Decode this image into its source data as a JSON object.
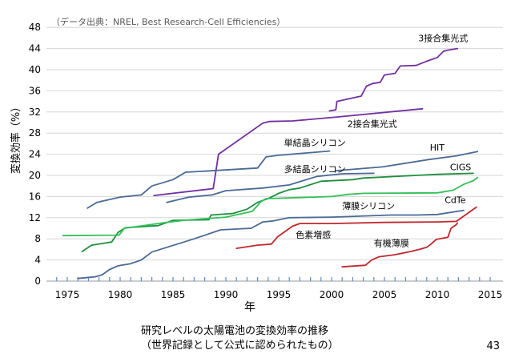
{
  "chart_data": {
    "type": "line",
    "source_note": "（データ出典：NREL, Best Research-Cell Efficiencies）",
    "xlabel": "年",
    "ylabel": "変換効率（%）",
    "xlim": [
      1973,
      2017
    ],
    "ylim": [
      0,
      50
    ],
    "xticks": [
      1975,
      1980,
      1985,
      1990,
      1995,
      2000,
      2005,
      2010,
      2015
    ],
    "yticks": [
      0,
      4,
      8,
      12,
      16,
      20,
      24,
      28,
      32,
      36,
      40,
      44,
      48
    ],
    "grid": true,
    "series": [
      {
        "name": "3接合集光式",
        "color": "#7030a0",
        "label_at": [
          2008.2,
          45.4
        ],
        "points": [
          [
            1999.8,
            32.2
          ],
          [
            2000.4,
            32.4
          ],
          [
            2000.5,
            34.0
          ],
          [
            2002.8,
            35.0
          ],
          [
            2003.3,
            36.9
          ],
          [
            2003.9,
            37.4
          ],
          [
            2004.6,
            37.6
          ],
          [
            2005.0,
            39.0
          ],
          [
            2006.0,
            39.3
          ],
          [
            2006.5,
            40.7
          ],
          [
            2008.0,
            40.8
          ],
          [
            2009.0,
            41.6
          ],
          [
            2010.0,
            42.3
          ],
          [
            2010.6,
            43.5
          ],
          [
            2011.0,
            43.7
          ],
          [
            2011.9,
            44.0
          ]
        ]
      },
      {
        "name": "2接合集光式",
        "color": "#7030a0",
        "label_at": [
          2001.5,
          29.2
        ],
        "points": [
          [
            1983.2,
            16.2
          ],
          [
            1988.8,
            17.5
          ],
          [
            1989.3,
            24.0
          ],
          [
            1993.5,
            29.9
          ],
          [
            1994.1,
            30.2
          ],
          [
            1996.3,
            30.3
          ],
          [
            2000.3,
            31.0
          ],
          [
            2008.6,
            32.6
          ]
        ]
      },
      {
        "name": "単結晶シリコン",
        "color": "#4a6a96",
        "label_at": [
          1995.5,
          25.6
        ],
        "points": [
          [
            1976.9,
            13.8
          ],
          [
            1977.8,
            14.9
          ],
          [
            1980.0,
            15.9
          ],
          [
            1982.0,
            16.3
          ],
          [
            1983.0,
            18.0
          ],
          [
            1985.0,
            19.2
          ],
          [
            1986.2,
            20.6
          ],
          [
            1988.0,
            20.8
          ],
          [
            1993.0,
            21.4
          ],
          [
            1993.8,
            23.5
          ],
          [
            1995.0,
            23.8
          ],
          [
            1999.8,
            24.6
          ]
        ]
      },
      {
        "name": "HIT",
        "color": "#4a6a96",
        "label_at": [
          2009.3,
          24.7
        ],
        "points": [
          [
            2000.4,
            20.9
          ],
          [
            2004.8,
            21.6
          ],
          [
            2007.0,
            22.3
          ],
          [
            2009.2,
            23.0
          ],
          [
            2011.8,
            23.7
          ],
          [
            2013.8,
            24.5
          ]
        ]
      },
      {
        "name": "多結晶シリコン",
        "color": "#4a6a96",
        "label_at": [
          1995.5,
          20.6
        ],
        "points": [
          [
            1984.4,
            14.9
          ],
          [
            1986.5,
            15.9
          ],
          [
            1988.7,
            16.3
          ],
          [
            1990.0,
            17.1
          ],
          [
            1993.5,
            17.6
          ],
          [
            1996.0,
            18.2
          ],
          [
            1998.6,
            19.8
          ],
          [
            2001.0,
            20.3
          ],
          [
            2004.0,
            20.4
          ]
        ]
      },
      {
        "name": "CIGS",
        "color": "#1e8e3e",
        "label_at": [
          2011.2,
          21.0
        ],
        "points": [
          [
            1976.4,
            5.6
          ],
          [
            1977.3,
            6.8
          ],
          [
            1979.2,
            7.4
          ],
          [
            1979.8,
            9.2
          ],
          [
            1980.5,
            10.1
          ],
          [
            1983.6,
            10.5
          ],
          [
            1985.0,
            11.5
          ],
          [
            1988.4,
            11.6
          ],
          [
            1988.6,
            12.5
          ],
          [
            1990.7,
            12.8
          ],
          [
            1992.0,
            13.6
          ],
          [
            1993.0,
            14.9
          ],
          [
            1994.1,
            15.7
          ],
          [
            1995.0,
            16.6
          ],
          [
            1996.0,
            17.3
          ],
          [
            1997.0,
            17.6
          ],
          [
            1999.0,
            18.9
          ],
          [
            2002.0,
            19.2
          ],
          [
            2003.0,
            19.5
          ],
          [
            2008.0,
            20.0
          ],
          [
            2010.0,
            20.2
          ],
          [
            2013.4,
            20.4
          ]
        ]
      },
      {
        "name": "CdTe",
        "color": "#33c058",
        "label_at": [
          2010.7,
          14.8
        ],
        "points": [
          [
            1974.6,
            8.6
          ],
          [
            1979.9,
            8.7
          ],
          [
            1980.4,
            10.0
          ],
          [
            1984.0,
            11.0
          ],
          [
            1986.0,
            11.5
          ],
          [
            1990.0,
            12.1
          ],
          [
            1992.5,
            13.2
          ],
          [
            1993.3,
            15.0
          ],
          [
            1993.8,
            15.6
          ],
          [
            1997.0,
            15.8
          ],
          [
            2000.0,
            16.0
          ],
          [
            2001.5,
            16.4
          ],
          [
            2003.0,
            16.6
          ],
          [
            2010.0,
            16.7
          ],
          [
            2011.5,
            17.2
          ],
          [
            2012.5,
            18.3
          ],
          [
            2013.4,
            19.0
          ],
          [
            2013.8,
            19.6
          ]
        ]
      },
      {
        "name": "薄膜シリコン",
        "color": "#4a6a96",
        "label_at": [
          2001.0,
          13.6
        ],
        "points": [
          [
            1976.0,
            0.5
          ],
          [
            1977.6,
            0.8
          ],
          [
            1978.3,
            1.2
          ],
          [
            1979.0,
            2.2
          ],
          [
            1979.8,
            2.9
          ],
          [
            1981.0,
            3.3
          ],
          [
            1982.0,
            4.0
          ],
          [
            1983.0,
            5.5
          ],
          [
            1987.0,
            8.0
          ],
          [
            1989.5,
            9.7
          ],
          [
            1992.4,
            10.0
          ],
          [
            1993.5,
            11.2
          ],
          [
            1994.5,
            11.4
          ],
          [
            1996.0,
            12.0
          ],
          [
            2000.0,
            12.1
          ],
          [
            2005.6,
            12.5
          ],
          [
            2008.0,
            12.5
          ],
          [
            2010.0,
            12.6
          ],
          [
            2012.5,
            13.4
          ]
        ]
      },
      {
        "name": "色素増感",
        "color": "#c0282d",
        "label_at": [
          1996.6,
          8.2
        ],
        "points": [
          [
            1991.0,
            6.2
          ],
          [
            1993.0,
            6.8
          ],
          [
            1994.3,
            7.0
          ],
          [
            1994.9,
            8.4
          ],
          [
            1996.3,
            10.4
          ],
          [
            1997.0,
            10.9
          ],
          [
            2000.0,
            10.9
          ],
          [
            2005.0,
            11.1
          ],
          [
            2010.0,
            11.2
          ],
          [
            2011.8,
            11.3
          ],
          [
            2013.7,
            14.0
          ]
        ]
      },
      {
        "name": "有機薄膜",
        "color": "#c0282d",
        "label_at": [
          2004.0,
          6.6
        ],
        "points": [
          [
            2001.0,
            2.7
          ],
          [
            2003.2,
            3.0
          ],
          [
            2003.8,
            4.0
          ],
          [
            2004.5,
            4.6
          ],
          [
            2006.0,
            5.0
          ],
          [
            2007.5,
            5.6
          ],
          [
            2008.3,
            6.0
          ],
          [
            2009.0,
            6.4
          ],
          [
            2009.4,
            7.0
          ],
          [
            2009.9,
            7.9
          ],
          [
            2010.5,
            8.1
          ],
          [
            2011.0,
            8.3
          ],
          [
            2011.3,
            10.0
          ],
          [
            2011.8,
            10.7
          ],
          [
            2011.9,
            11.0
          ]
        ]
      }
    ]
  },
  "caption": {
    "line1": "研究レベルの太陽電池の変換効率の推移",
    "line2": "（世界記録として公式に認められたもの）"
  },
  "page_number": "43"
}
